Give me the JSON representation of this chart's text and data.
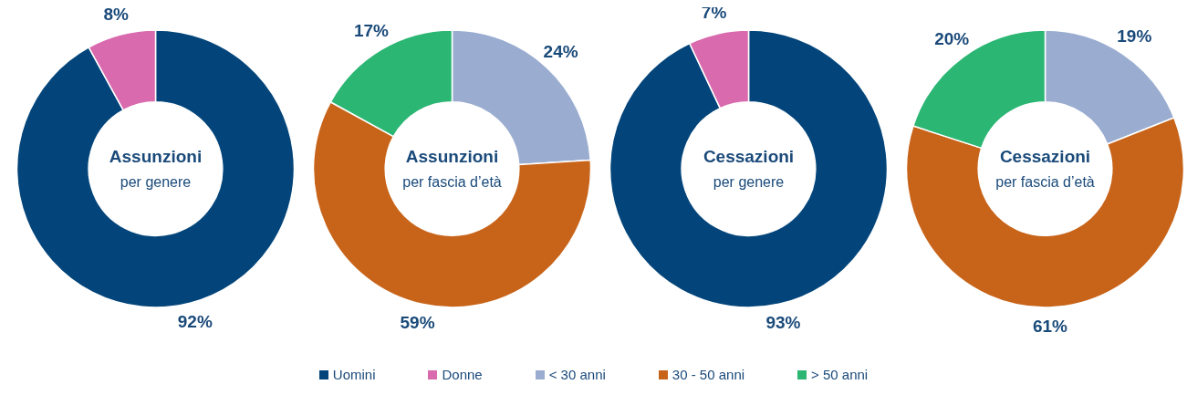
{
  "chart_data": [
    {
      "type": "donut",
      "title": "Assunzioni",
      "subtitle": "per genere",
      "categories": [
        "Uomini",
        "Donne"
      ],
      "values": [
        92,
        8
      ],
      "value_labels": [
        "92%",
        "8%"
      ],
      "colors": [
        "#03457a",
        "#d96aad"
      ],
      "legend": "bottom"
    },
    {
      "type": "donut",
      "title": "Assunzioni",
      "subtitle": "per fascia d’età",
      "categories": [
        "< 30 anni",
        "30 - 50 anni",
        "> 50 anni"
      ],
      "values": [
        24,
        59,
        17
      ],
      "value_labels": [
        "24%",
        "59%",
        "17%"
      ],
      "colors": [
        "#9aadd0",
        "#c8641a",
        "#2bb673"
      ],
      "legend": "bottom"
    },
    {
      "type": "donut",
      "title": "Cessazioni",
      "subtitle": "per genere",
      "categories": [
        null,
        null
      ],
      "values": [
        93,
        7
      ],
      "value_labels": [
        "93%",
        "7%"
      ],
      "colors": [
        "#03457a",
        "#d96aad"
      ]
    },
    {
      "type": "donut",
      "title": "Cessazioni",
      "subtitle": "per fascia d’età",
      "categories": [
        null,
        null,
        null
      ],
      "values": [
        19,
        61,
        20
      ],
      "value_labels": [
        "19%",
        "61%",
        "20%"
      ],
      "colors": [
        "#9aadd0",
        "#c8641a",
        "#2bb673"
      ]
    }
  ]
}
